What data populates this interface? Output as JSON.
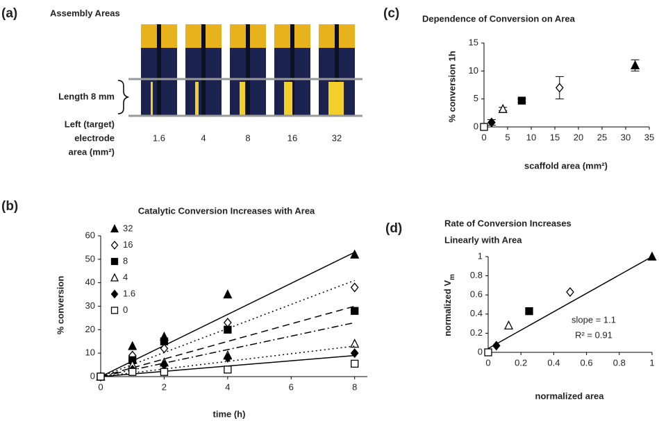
{
  "chart_data": [
    {
      "type": "photo",
      "panel": "(a)",
      "title": "Assembly Areas",
      "length_label": "Length 8 mm",
      "row_label": [
        "Left (target)",
        "electrode",
        "area (mm²)"
      ],
      "categories": [
        "1.6",
        "4",
        "8",
        "16",
        "32"
      ]
    },
    {
      "type": "scatter",
      "panel": "(b)",
      "title": "Catalytic Conversion Increases with Area",
      "xlabel": "time (h)",
      "ylabel": "% conversion",
      "x": [
        0,
        1,
        2,
        4,
        8
      ],
      "fit_x": [
        0,
        8
      ],
      "xlim": [
        0,
        8.4
      ],
      "xticks": [
        0,
        2,
        4,
        6,
        8
      ],
      "ylim": [
        0,
        60
      ],
      "yticks": [
        0,
        10,
        20,
        30,
        40,
        50,
        60
      ],
      "legend": "upper left",
      "series": [
        {
          "name": "32",
          "marker": "triangle",
          "filled": true,
          "color": "#000000",
          "values": [
            0,
            13,
            17,
            35,
            52
          ],
          "fit": [
            0,
            53
          ],
          "line_style": "solid"
        },
        {
          "name": "16",
          "marker": "diamond",
          "filled": false,
          "color": "#000000",
          "values": [
            0,
            9,
            12,
            23,
            38
          ],
          "fit": [
            0,
            41
          ],
          "line_style": "dotted"
        },
        {
          "name": "8",
          "marker": "square",
          "filled": true,
          "color": "#000000",
          "values": [
            0,
            7,
            15,
            20,
            28
          ],
          "fit": [
            0,
            30
          ],
          "line_style": "dashed"
        },
        {
          "name": "4",
          "marker": "triangle",
          "filled": false,
          "color": "#000000",
          "values": [
            0,
            5,
            6,
            9,
            14
          ],
          "fit": [
            0,
            23
          ],
          "line_style": "dashdot"
        },
        {
          "name": "1.6",
          "marker": "diamond",
          "filled": true,
          "color": "#000000",
          "values": [
            0,
            3,
            5,
            8,
            10
          ],
          "fit": [
            0,
            13
          ],
          "line_style": "dotted"
        },
        {
          "name": "0",
          "marker": "square",
          "filled": false,
          "color": "#000000",
          "values": [
            0,
            2,
            2,
            3,
            5.5
          ],
          "fit": [
            0,
            9
          ],
          "line_style": "solid"
        }
      ]
    },
    {
      "type": "scatter",
      "panel": "(c)",
      "title": "Dependence of Conversion on Area",
      "xlabel": "scaffold area (mm²)",
      "ylabel": "% conversion 1h",
      "x": [
        0,
        1.6,
        4,
        8,
        16,
        32
      ],
      "xlim": [
        0,
        35
      ],
      "xticks": [
        0,
        5,
        10,
        15,
        20,
        25,
        30,
        35
      ],
      "ylim": [
        0,
        15
      ],
      "yticks": [
        0,
        5,
        10,
        15
      ],
      "series": [
        {
          "color": "#000000",
          "values": [
            0,
            0.8,
            3.2,
            4.7,
            7,
            11
          ],
          "errors": [
            0,
            0.5,
            0.3,
            0.3,
            2,
            1
          ],
          "markers": [
            "square",
            "diamond",
            "triangle",
            "square",
            "diamond",
            "triangle"
          ],
          "filled": [
            false,
            true,
            false,
            true,
            false,
            true
          ]
        }
      ]
    },
    {
      "type": "scatter",
      "panel": "(d)",
      "title": [
        "Rate of Conversion Increases",
        "Linearly with Area"
      ],
      "xlabel": "normalized area",
      "ylabel": {
        "text": "normalized V",
        "sub": "m"
      },
      "annotations": [
        "slope = 1.1",
        "R² = 0.91"
      ],
      "x": [
        0,
        0.05,
        0.125,
        0.25,
        0.5,
        1
      ],
      "fit_x": [
        0,
        1
      ],
      "xlim": [
        0,
        1
      ],
      "xticks": [
        0,
        0.2,
        0.4,
        0.6,
        0.8,
        1
      ],
      "ylim": [
        0,
        1
      ],
      "yticks": [
        0,
        0.2,
        0.4,
        0.6,
        0.8,
        1
      ],
      "series": [
        {
          "color": "#000000",
          "values": [
            0,
            0.07,
            0.28,
            0.43,
            0.63,
            1
          ],
          "fit": [
            0.04,
            1
          ],
          "line_style": "solid",
          "markers": [
            "square",
            "diamond",
            "triangle",
            "square",
            "diamond",
            "triangle"
          ],
          "filled": [
            false,
            true,
            false,
            true,
            false,
            true
          ]
        }
      ]
    }
  ]
}
